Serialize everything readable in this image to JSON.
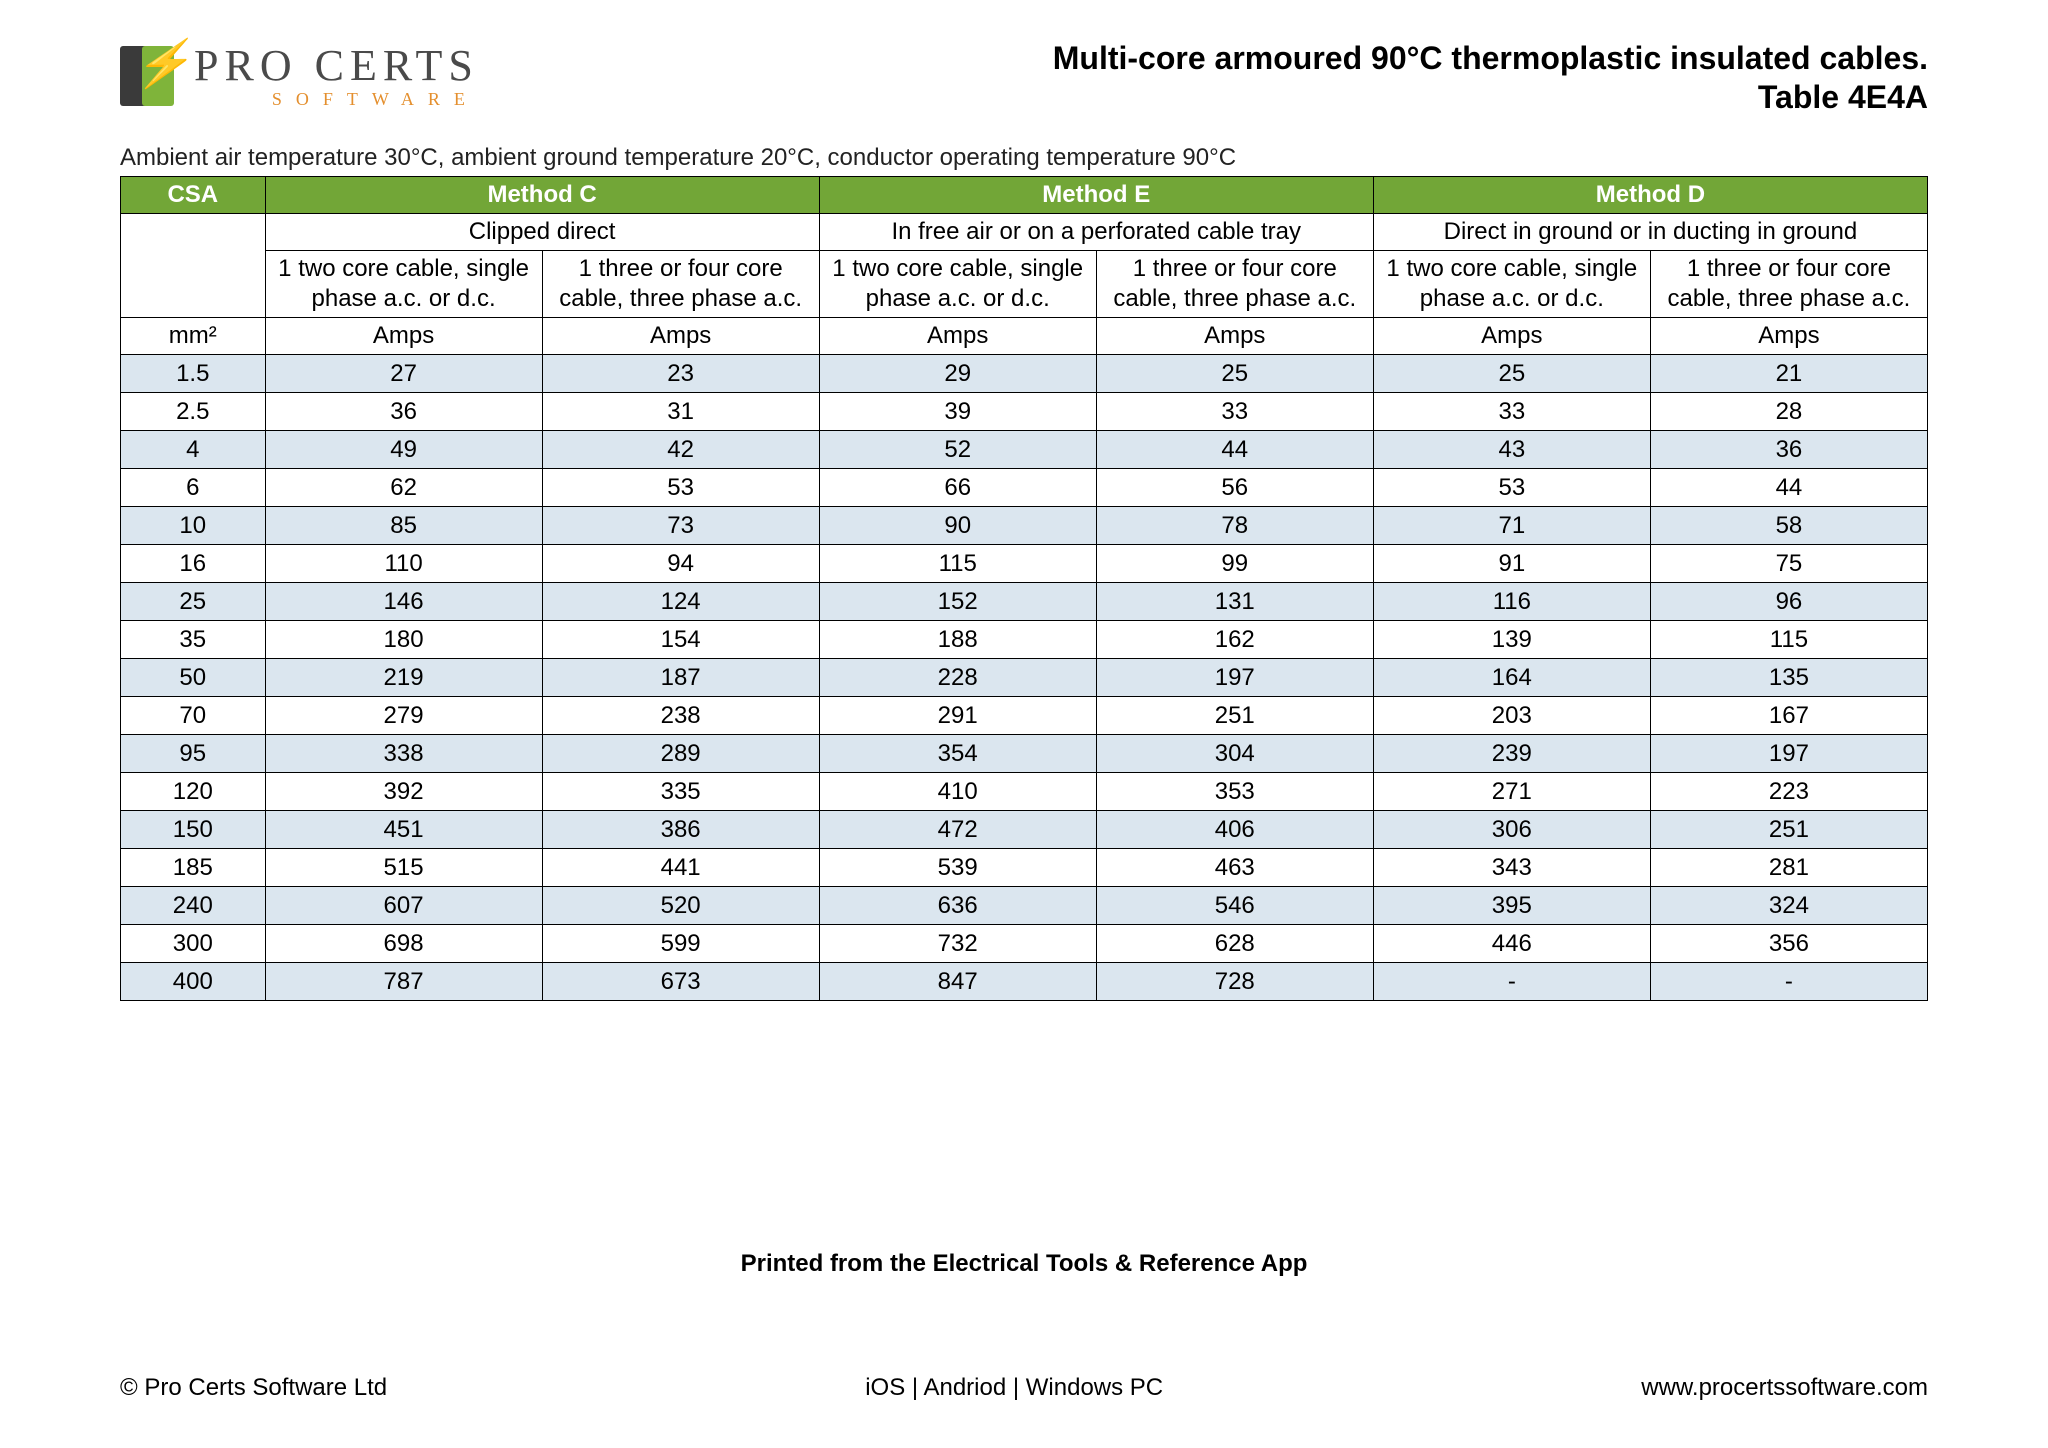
{
  "logo": {
    "brand_main": "PRO CERTS",
    "brand_sub": "SOFTWARE"
  },
  "title": {
    "line1": "Multi-core armoured 90°C thermoplastic insulated cables.",
    "line2": "Table 4E4A"
  },
  "ambient": "Ambient air temperature 30°C, ambient ground temperature 20°C, conductor operating temperature 90°C",
  "headers": {
    "csa": "CSA",
    "methods": [
      {
        "name": "Method C",
        "desc": "Clipped direct"
      },
      {
        "name": "Method E",
        "desc": "In free air or on a perforated cable tray"
      },
      {
        "name": "Method D",
        "desc": "Direct in ground or in ducting in ground"
      }
    ],
    "sub_two": "1 two core cable, single phase a.c. or d.c.",
    "sub_three": "1 three or four core cable, three phase a.c.",
    "unit_csa": "mm²",
    "unit_amp": "Amps"
  },
  "rows": [
    {
      "csa": "1.5",
      "v": [
        "27",
        "23",
        "29",
        "25",
        "25",
        "21"
      ]
    },
    {
      "csa": "2.5",
      "v": [
        "36",
        "31",
        "39",
        "33",
        "33",
        "28"
      ]
    },
    {
      "csa": "4",
      "v": [
        "49",
        "42",
        "52",
        "44",
        "43",
        "36"
      ]
    },
    {
      "csa": "6",
      "v": [
        "62",
        "53",
        "66",
        "56",
        "53",
        "44"
      ]
    },
    {
      "csa": "10",
      "v": [
        "85",
        "73",
        "90",
        "78",
        "71",
        "58"
      ]
    },
    {
      "csa": "16",
      "v": [
        "110",
        "94",
        "115",
        "99",
        "91",
        "75"
      ]
    },
    {
      "csa": "25",
      "v": [
        "146",
        "124",
        "152",
        "131",
        "116",
        "96"
      ]
    },
    {
      "csa": "35",
      "v": [
        "180",
        "154",
        "188",
        "162",
        "139",
        "115"
      ]
    },
    {
      "csa": "50",
      "v": [
        "219",
        "187",
        "228",
        "197",
        "164",
        "135"
      ]
    },
    {
      "csa": "70",
      "v": [
        "279",
        "238",
        "291",
        "251",
        "203",
        "167"
      ]
    },
    {
      "csa": "95",
      "v": [
        "338",
        "289",
        "354",
        "304",
        "239",
        "197"
      ]
    },
    {
      "csa": "120",
      "v": [
        "392",
        "335",
        "410",
        "353",
        "271",
        "223"
      ]
    },
    {
      "csa": "150",
      "v": [
        "451",
        "386",
        "472",
        "406",
        "306",
        "251"
      ]
    },
    {
      "csa": "185",
      "v": [
        "515",
        "441",
        "539",
        "463",
        "343",
        "281"
      ]
    },
    {
      "csa": "240",
      "v": [
        "607",
        "520",
        "636",
        "546",
        "395",
        "324"
      ]
    },
    {
      "csa": "300",
      "v": [
        "698",
        "599",
        "732",
        "628",
        "446",
        "356"
      ]
    },
    {
      "csa": "400",
      "v": [
        "787",
        "673",
        "847",
        "728",
        "-",
        "-"
      ]
    }
  ],
  "printed": "Printed from the Electrical Tools & Reference App",
  "footer": {
    "copyright": "© Pro Certs Software Ltd",
    "platforms": "iOS | Andriod | Windows PC",
    "url": "www.procertssoftware.com"
  },
  "colors": {
    "header_green": "#72a637",
    "band": "#dbe6ef",
    "accent_orange": "#e48f2e"
  }
}
